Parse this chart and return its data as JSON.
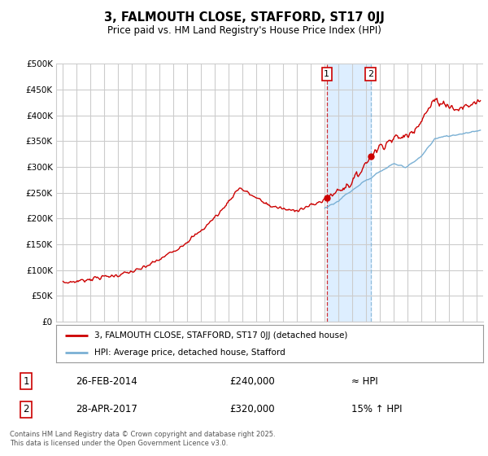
{
  "title": "3, FALMOUTH CLOSE, STAFFORD, ST17 0JJ",
  "subtitle": "Price paid vs. HM Land Registry's House Price Index (HPI)",
  "ylabel_ticks": [
    "£0",
    "£50K",
    "£100K",
    "£150K",
    "£200K",
    "£250K",
    "£300K",
    "£350K",
    "£400K",
    "£450K",
    "£500K"
  ],
  "ytick_values": [
    0,
    50000,
    100000,
    150000,
    200000,
    250000,
    300000,
    350000,
    400000,
    450000,
    500000
  ],
  "xlim_years": [
    1994.5,
    2025.5
  ],
  "ylim": [
    0,
    500000
  ],
  "sale1": {
    "date_label": "26-FEB-2014",
    "price": 240000,
    "hpi_text": "≈ HPI",
    "marker_year": 2014.15
  },
  "sale2": {
    "date_label": "28-APR-2017",
    "price": 320000,
    "hpi_text": "15% ↑ HPI",
    "marker_year": 2017.33
  },
  "legend_label1": "3, FALMOUTH CLOSE, STAFFORD, ST17 0JJ (detached house)",
  "legend_label2": "HPI: Average price, detached house, Stafford",
  "footer": "Contains HM Land Registry data © Crown copyright and database right 2025.\nThis data is licensed under the Open Government Licence v3.0.",
  "hpi_shade_start": 2014.15,
  "hpi_shade_end": 2017.33,
  "red_color": "#cc0000",
  "blue_color": "#7ab0d4",
  "shade_color": "#ddeeff",
  "grid_color": "#cccccc",
  "background_color": "#ffffff"
}
